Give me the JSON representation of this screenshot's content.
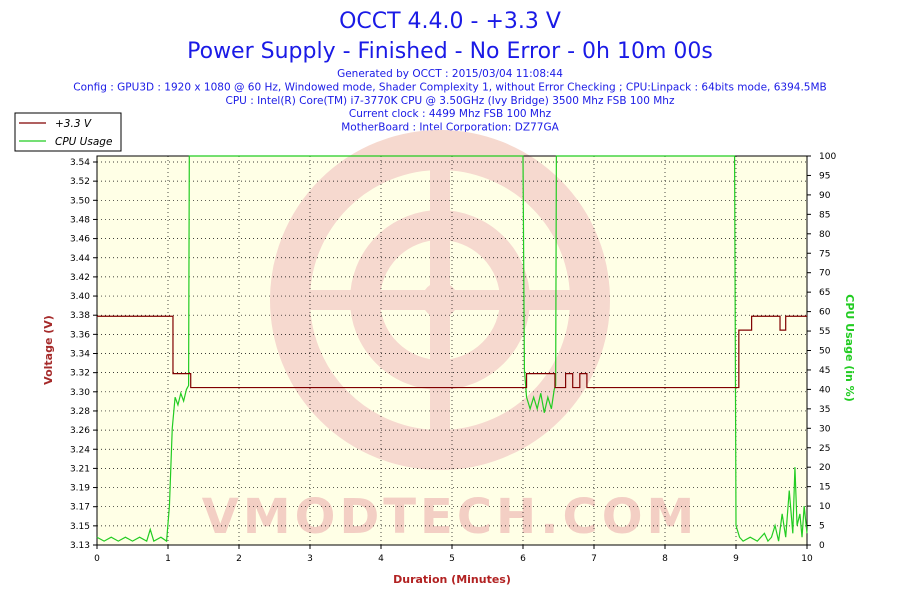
{
  "header": {
    "title": "OCCT 4.4.0 - +3.3 V",
    "subtitle": "Power Supply - Finished - No Error - 0h 10m 00s",
    "info_lines": [
      "Generated by OCCT : 2015/03/04 11:08:44",
      "Config : GPU3D : 1920 x 1080 @ 60 Hz, Windowed mode, Shader Complexity 1, without Error Checking ; CPU:Linpack : 64bits mode, 6394.5MB",
      "CPU : Intel(R) Core(TM) i7-3770K CPU @ 3.50GHz (Ivy Bridge) 3500 Mhz FSB 100 Mhz",
      "Current clock : 4499 Mhz FSB 100 Mhz",
      "MotherBoard : Intel Corporation: DZ77GA"
    ]
  },
  "watermark": "VMODTECH.COM",
  "colors": {
    "voltage": "#800000",
    "cpu": "#22cc22",
    "plot_bg": "#ffffe6",
    "title": "#1a1ae6",
    "axis_x_label": "#b22222",
    "axis_y_left_label": "#a52a2a",
    "axis_y_right_label": "#22cc22"
  },
  "chart_data": {
    "type": "line",
    "xlabel": "Duration (Minutes)",
    "ylabel_left": "Voltage (V)",
    "ylabel_right": "CPU Usage (in %)",
    "xlim": [
      0,
      10
    ],
    "ylim_left": [
      3.13,
      3.55
    ],
    "ylim_right": [
      0,
      100
    ],
    "x_ticks": [
      "0",
      "1",
      "2",
      "3",
      "4",
      "5",
      "6",
      "7",
      "8",
      "9",
      "10"
    ],
    "y_left_ticks": [
      "3.13",
      "3.15",
      "3.17",
      "3.19",
      "3.21",
      "3.24",
      "3.26",
      "3.28",
      "3.30",
      "3.32",
      "3.34",
      "3.36",
      "3.38",
      "3.40",
      "3.42",
      "3.44",
      "3.46",
      "3.48",
      "3.50",
      "3.52",
      "3.54"
    ],
    "y_right_ticks": [
      "0",
      "5",
      "10",
      "15",
      "20",
      "25",
      "30",
      "35",
      "40",
      "45",
      "50",
      "55",
      "60",
      "65",
      "70",
      "75",
      "80",
      "85",
      "90",
      "95",
      "100"
    ],
    "legend_position": "top-left",
    "grid": true,
    "series": [
      {
        "name": "+3.3 V",
        "axis": "left",
        "step": true,
        "points": [
          [
            0,
            3.377
          ],
          [
            1.02,
            3.377
          ],
          [
            1.07,
            3.315
          ],
          [
            1.28,
            3.315
          ],
          [
            1.32,
            3.3
          ],
          [
            6.02,
            3.3
          ],
          [
            6.05,
            3.315
          ],
          [
            6.42,
            3.315
          ],
          [
            6.45,
            3.3
          ],
          [
            6.58,
            3.3
          ],
          [
            6.6,
            3.315
          ],
          [
            6.68,
            3.315
          ],
          [
            6.7,
            3.3
          ],
          [
            6.78,
            3.3
          ],
          [
            6.8,
            3.315
          ],
          [
            6.88,
            3.315
          ],
          [
            6.9,
            3.3
          ],
          [
            9.02,
            3.3
          ],
          [
            9.04,
            3.362
          ],
          [
            9.2,
            3.362
          ],
          [
            9.22,
            3.377
          ],
          [
            9.6,
            3.377
          ],
          [
            9.62,
            3.362
          ],
          [
            9.68,
            3.362
          ],
          [
            9.7,
            3.377
          ],
          [
            10,
            3.377
          ]
        ]
      },
      {
        "name": "CPU Usage",
        "axis": "right",
        "step": false,
        "points": [
          [
            0,
            2
          ],
          [
            0.1,
            1
          ],
          [
            0.2,
            2
          ],
          [
            0.3,
            1
          ],
          [
            0.4,
            2
          ],
          [
            0.5,
            1
          ],
          [
            0.6,
            2
          ],
          [
            0.7,
            1
          ],
          [
            0.75,
            4
          ],
          [
            0.8,
            1
          ],
          [
            0.9,
            2
          ],
          [
            0.98,
            1
          ],
          [
            1.02,
            10
          ],
          [
            1.06,
            30
          ],
          [
            1.1,
            38
          ],
          [
            1.14,
            36
          ],
          [
            1.18,
            39
          ],
          [
            1.22,
            37
          ],
          [
            1.26,
            40
          ],
          [
            1.29,
            41
          ],
          [
            1.3,
            100
          ],
          [
            6.0,
            100
          ],
          [
            6.02,
            45
          ],
          [
            6.05,
            38
          ],
          [
            6.1,
            35
          ],
          [
            6.15,
            38
          ],
          [
            6.2,
            35
          ],
          [
            6.25,
            39
          ],
          [
            6.3,
            34
          ],
          [
            6.35,
            38
          ],
          [
            6.4,
            35
          ],
          [
            6.44,
            40
          ],
          [
            6.46,
            41
          ],
          [
            6.47,
            100
          ],
          [
            8.98,
            100
          ],
          [
            9.0,
            5
          ],
          [
            9.05,
            2
          ],
          [
            9.1,
            1
          ],
          [
            9.2,
            2
          ],
          [
            9.3,
            1
          ],
          [
            9.4,
            3
          ],
          [
            9.45,
            1
          ],
          [
            9.5,
            2
          ],
          [
            9.55,
            5
          ],
          [
            9.6,
            1
          ],
          [
            9.65,
            8
          ],
          [
            9.7,
            2
          ],
          [
            9.75,
            14
          ],
          [
            9.8,
            3
          ],
          [
            9.83,
            20
          ],
          [
            9.86,
            5
          ],
          [
            9.9,
            8
          ],
          [
            9.93,
            2
          ],
          [
            9.96,
            10
          ],
          [
            10,
            3
          ]
        ]
      }
    ]
  }
}
